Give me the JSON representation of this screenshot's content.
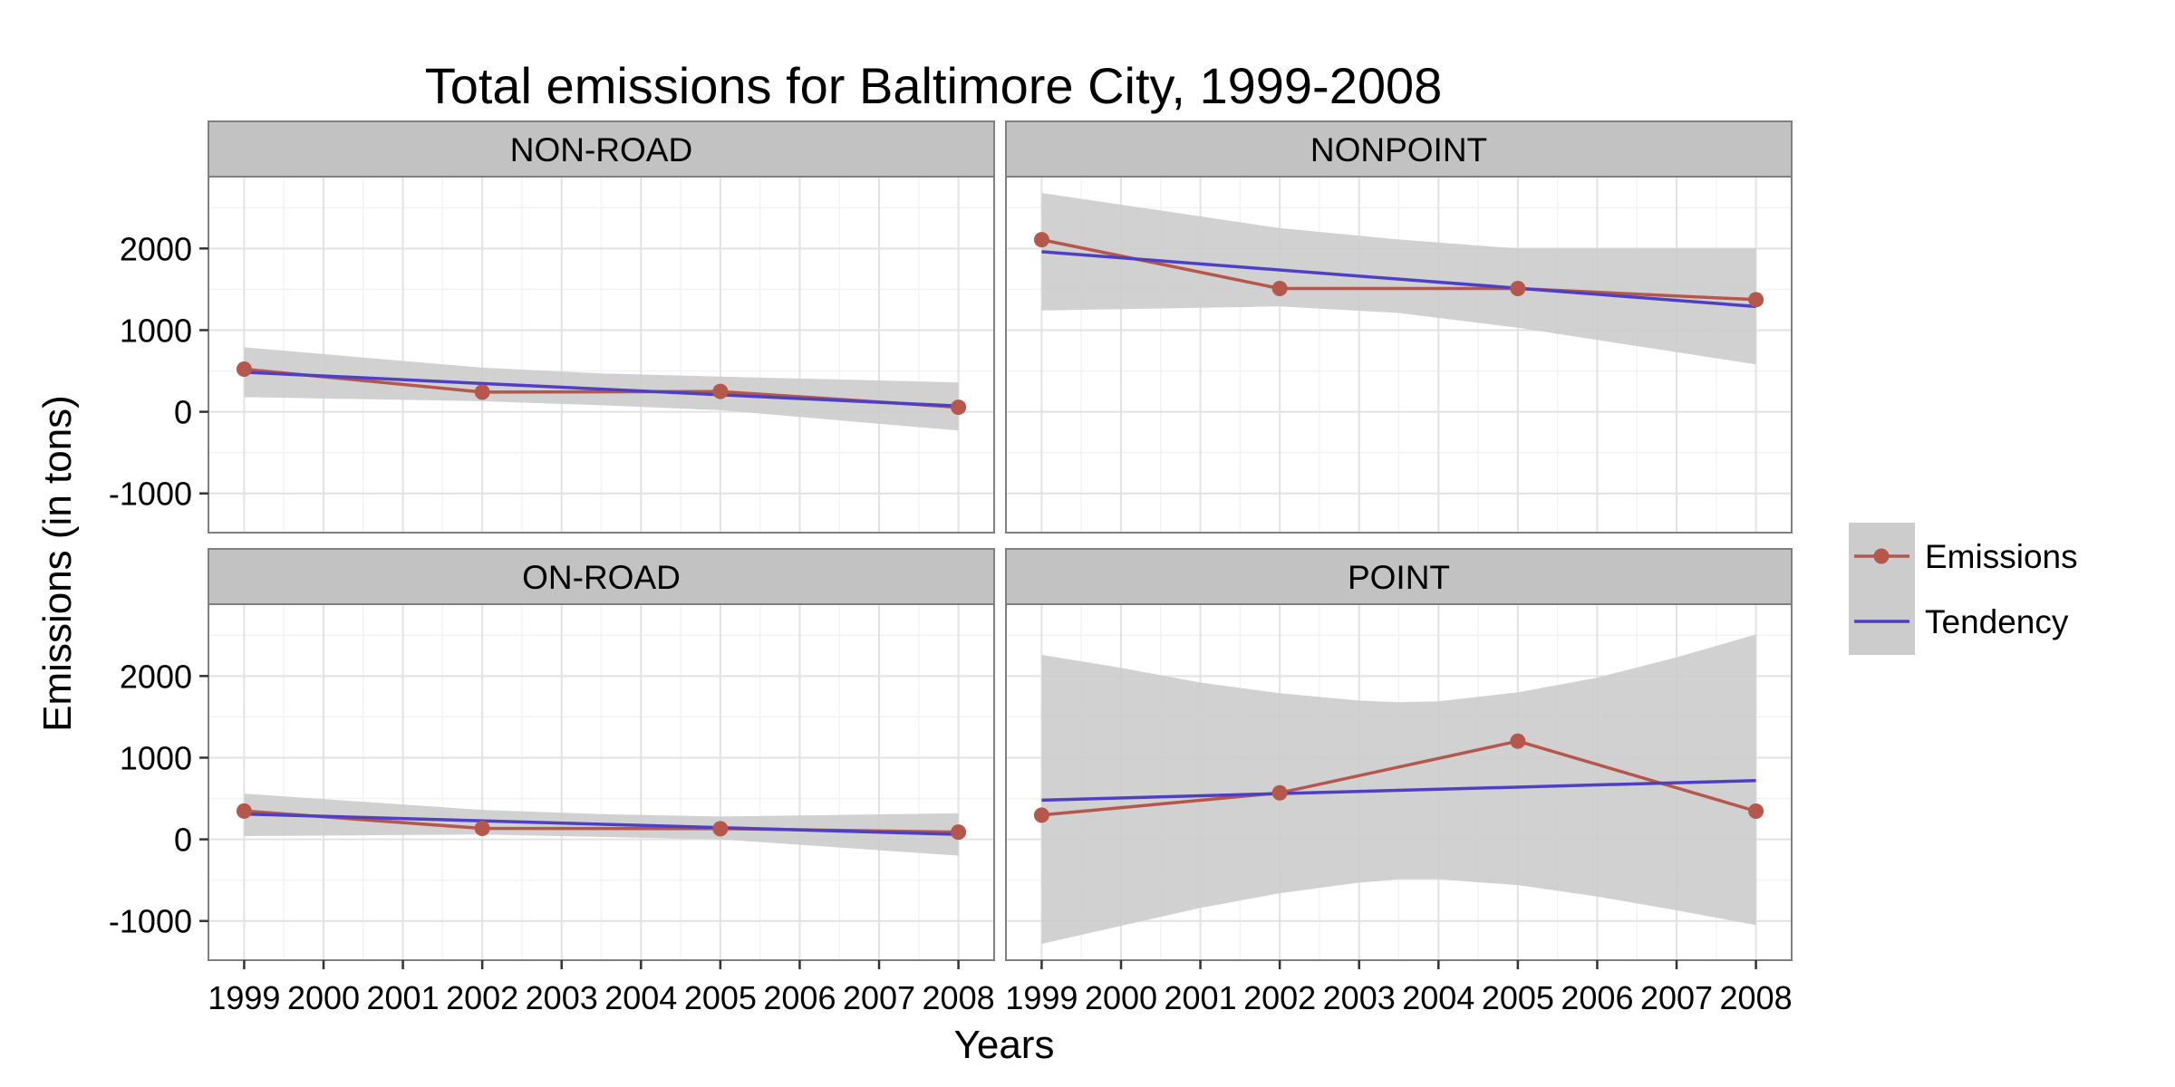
{
  "chart_data": {
    "type": "line",
    "title": "Total emissions for Baltimore City, 1999-2008",
    "xlabel": "Years",
    "ylabel": "Emissions (in tons)",
    "x_ticks": [
      1999,
      2000,
      2001,
      2002,
      2003,
      2004,
      2005,
      2006,
      2007,
      2008
    ],
    "y_ticks": [
      -1000,
      0,
      1000,
      2000
    ],
    "xlim": [
      1998.55,
      2008.45
    ],
    "ylim": [
      -1480,
      2880
    ],
    "grid": true,
    "legend_position": "right",
    "legend": [
      {
        "label": "Emissions",
        "color": "#b5574b",
        "style": "line-point"
      },
      {
        "label": "Tendency",
        "color": "#4f3fc4",
        "style": "line"
      }
    ],
    "colors": {
      "emissions": "#b5574b",
      "tendency": "#4f3fc4",
      "ribbon": "#cccccc",
      "strip": "#c2c2c2",
      "panel_bg": "#ffffff"
    },
    "panels": [
      {
        "label": "NON-ROAD",
        "x": [
          1999,
          2002,
          2005,
          2008
        ],
        "emissions": [
          522.94,
          240.85,
          248.93,
          55.82
        ],
        "tendency": {
          "start": [
            1999,
            485
          ],
          "end": [
            2008,
            70
          ]
        },
        "ribbon": {
          "x": [
            1999,
            2002,
            2003.5,
            2005,
            2008
          ],
          "upper": [
            790,
            540,
            470,
            430,
            360
          ],
          "lower": [
            180,
            130,
            80,
            20,
            -230
          ]
        }
      },
      {
        "label": "NONPOINT",
        "x": [
          1999,
          2002,
          2005,
          2008
        ],
        "emissions": [
          2107.63,
          1509.5,
          1509.5,
          1373.21
        ],
        "tendency": {
          "start": [
            1999,
            1960
          ],
          "end": [
            2008,
            1290
          ]
        },
        "ribbon": {
          "x": [
            1999,
            2002,
            2003.5,
            2005,
            2008
          ],
          "upper": [
            2680,
            2250,
            2110,
            2000,
            2000
          ],
          "lower": [
            1240,
            1290,
            1210,
            1030,
            580
          ]
        }
      },
      {
        "label": "ON-ROAD",
        "x": [
          1999,
          2002,
          2005,
          2008
        ],
        "emissions": [
          346.82,
          134.31,
          130.43,
          88.28
        ],
        "tendency": {
          "start": [
            1999,
            310
          ],
          "end": [
            2008,
            60
          ]
        },
        "ribbon": {
          "x": [
            1999,
            2002,
            2003.5,
            2005,
            2008
          ],
          "upper": [
            560,
            360,
            310,
            280,
            320
          ],
          "lower": [
            40,
            60,
            30,
            0,
            -200
          ]
        }
      },
      {
        "label": "POINT",
        "x": [
          1999,
          2002,
          2005,
          2008
        ],
        "emissions": [
          296.8,
          569.26,
          1202.49,
          344.98
        ],
        "tendency": {
          "start": [
            1999,
            480
          ],
          "end": [
            2008,
            720
          ]
        },
        "ribbon": {
          "x": [
            1999,
            2000,
            2001,
            2002,
            2003,
            2003.5,
            2004,
            2005,
            2006,
            2007,
            2008
          ],
          "upper": [
            2260,
            2100,
            1920,
            1790,
            1700,
            1680,
            1690,
            1800,
            1980,
            2230,
            2510
          ],
          "lower": [
            -1280,
            -1060,
            -840,
            -660,
            -530,
            -490,
            -490,
            -560,
            -700,
            -870,
            -1050
          ]
        }
      }
    ]
  }
}
